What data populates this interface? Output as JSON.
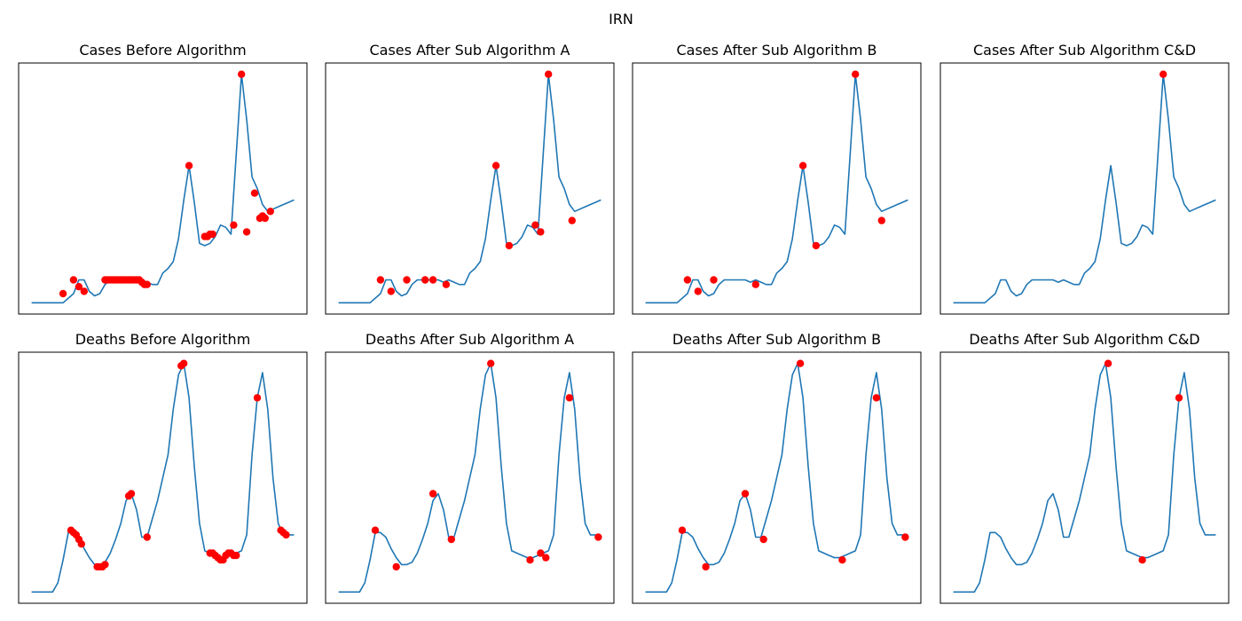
{
  "figure": {
    "title": "IRN"
  },
  "colors": {
    "line": "#1f77b4",
    "marker": "#ff0000",
    "axes": "#000000",
    "background": "#ffffff"
  },
  "layout": {
    "rows": 2,
    "cols": 4,
    "axis_ticks": "none",
    "grid": false
  },
  "chart_data": [
    {
      "type": "line",
      "title": "Cases Before Algorithm",
      "series": [
        {
          "x": [
            0,
            8,
            12,
            16,
            18,
            20,
            22,
            24,
            26,
            28,
            30,
            32,
            34,
            36,
            38,
            40,
            42,
            44,
            46,
            48,
            50,
            52,
            54,
            56,
            58,
            60,
            62,
            64,
            66,
            68,
            70,
            72,
            74,
            76,
            78,
            80,
            82,
            84,
            86,
            88,
            90,
            92,
            94,
            96,
            98,
            100
          ],
          "values": [
            0,
            0,
            0,
            4,
            10,
            10,
            5,
            3,
            4,
            8,
            10,
            10,
            10,
            10,
            10,
            9,
            10,
            9,
            8,
            8,
            13,
            15,
            18,
            28,
            45,
            60,
            44,
            26,
            25,
            26,
            29,
            34,
            33,
            30,
            65,
            100,
            80,
            55,
            50,
            43,
            40,
            41,
            42,
            43,
            44,
            45
          ]
        }
      ],
      "markers": [
        {
          "x": 12,
          "y": 4
        },
        {
          "x": 16,
          "y": 10
        },
        {
          "x": 18,
          "y": 7
        },
        {
          "x": 20,
          "y": 5
        },
        {
          "x": 28,
          "y": 10
        },
        {
          "x": 29,
          "y": 10
        },
        {
          "x": 30,
          "y": 10
        },
        {
          "x": 31,
          "y": 10
        },
        {
          "x": 32,
          "y": 10
        },
        {
          "x": 33,
          "y": 10
        },
        {
          "x": 34,
          "y": 10
        },
        {
          "x": 35,
          "y": 10
        },
        {
          "x": 36,
          "y": 10
        },
        {
          "x": 37,
          "y": 10
        },
        {
          "x": 38,
          "y": 10
        },
        {
          "x": 39,
          "y": 10
        },
        {
          "x": 40,
          "y": 10
        },
        {
          "x": 41,
          "y": 10
        },
        {
          "x": 42,
          "y": 9
        },
        {
          "x": 43,
          "y": 8
        },
        {
          "x": 44,
          "y": 8
        },
        {
          "x": 60,
          "y": 60
        },
        {
          "x": 66,
          "y": 29
        },
        {
          "x": 67,
          "y": 29
        },
        {
          "x": 68,
          "y": 30
        },
        {
          "x": 69,
          "y": 30
        },
        {
          "x": 77,
          "y": 34
        },
        {
          "x": 80,
          "y": 100
        },
        {
          "x": 85,
          "y": 48
        },
        {
          "x": 87,
          "y": 37
        },
        {
          "x": 89,
          "y": 37
        },
        {
          "x": 91,
          "y": 40
        },
        {
          "x": 82,
          "y": 31
        },
        {
          "x": 88,
          "y": 38
        }
      ]
    },
    {
      "type": "line",
      "title": "Cases After Sub Algorithm A",
      "series": [
        {
          "x": [
            0,
            8,
            12,
            16,
            18,
            20,
            22,
            24,
            26,
            28,
            30,
            32,
            34,
            36,
            38,
            40,
            42,
            44,
            46,
            48,
            50,
            52,
            54,
            56,
            58,
            60,
            62,
            64,
            66,
            68,
            70,
            72,
            74,
            76,
            78,
            80,
            82,
            84,
            86,
            88,
            90,
            92,
            94,
            96,
            98,
            100
          ],
          "values": [
            0,
            0,
            0,
            4,
            10,
            10,
            5,
            3,
            4,
            8,
            10,
            10,
            10,
            10,
            10,
            9,
            10,
            9,
            8,
            8,
            13,
            15,
            18,
            28,
            45,
            60,
            44,
            26,
            25,
            26,
            29,
            34,
            33,
            30,
            65,
            100,
            80,
            55,
            50,
            43,
            40,
            41,
            42,
            43,
            44,
            45
          ]
        }
      ],
      "markers": [
        {
          "x": 16,
          "y": 10
        },
        {
          "x": 20,
          "y": 5
        },
        {
          "x": 26,
          "y": 10
        },
        {
          "x": 33,
          "y": 10
        },
        {
          "x": 36,
          "y": 10
        },
        {
          "x": 41,
          "y": 8
        },
        {
          "x": 60,
          "y": 60
        },
        {
          "x": 65,
          "y": 25
        },
        {
          "x": 75,
          "y": 34
        },
        {
          "x": 77,
          "y": 31
        },
        {
          "x": 80,
          "y": 100
        },
        {
          "x": 89,
          "y": 36
        }
      ]
    },
    {
      "type": "line",
      "title": "Cases After Sub Algorithm B",
      "series": [
        {
          "x": [
            0,
            8,
            12,
            16,
            18,
            20,
            22,
            24,
            26,
            28,
            30,
            32,
            34,
            36,
            38,
            40,
            42,
            44,
            46,
            48,
            50,
            52,
            54,
            56,
            58,
            60,
            62,
            64,
            66,
            68,
            70,
            72,
            74,
            76,
            78,
            80,
            82,
            84,
            86,
            88,
            90,
            92,
            94,
            96,
            98,
            100
          ],
          "values": [
            0,
            0,
            0,
            4,
            10,
            10,
            5,
            3,
            4,
            8,
            10,
            10,
            10,
            10,
            10,
            9,
            10,
            9,
            8,
            8,
            13,
            15,
            18,
            28,
            45,
            60,
            44,
            26,
            25,
            26,
            29,
            34,
            33,
            30,
            65,
            100,
            80,
            55,
            50,
            43,
            40,
            41,
            42,
            43,
            44,
            45
          ]
        }
      ],
      "markers": [
        {
          "x": 16,
          "y": 10
        },
        {
          "x": 20,
          "y": 5
        },
        {
          "x": 26,
          "y": 10
        },
        {
          "x": 42,
          "y": 8
        },
        {
          "x": 60,
          "y": 60
        },
        {
          "x": 65,
          "y": 25
        },
        {
          "x": 80,
          "y": 100
        },
        {
          "x": 90,
          "y": 36
        }
      ]
    },
    {
      "type": "line",
      "title": "Cases After Sub Algorithm C&D",
      "series": [
        {
          "x": [
            0,
            8,
            12,
            16,
            18,
            20,
            22,
            24,
            26,
            28,
            30,
            32,
            34,
            36,
            38,
            40,
            42,
            44,
            46,
            48,
            50,
            52,
            54,
            56,
            58,
            60,
            62,
            64,
            66,
            68,
            70,
            72,
            74,
            76,
            78,
            80,
            82,
            84,
            86,
            88,
            90,
            92,
            94,
            96,
            98,
            100
          ],
          "values": [
            0,
            0,
            0,
            4,
            10,
            10,
            5,
            3,
            4,
            8,
            10,
            10,
            10,
            10,
            10,
            9,
            10,
            9,
            8,
            8,
            13,
            15,
            18,
            28,
            45,
            60,
            44,
            26,
            25,
            26,
            29,
            34,
            33,
            30,
            65,
            100,
            80,
            55,
            50,
            43,
            40,
            41,
            42,
            43,
            44,
            45
          ]
        }
      ],
      "markers": [
        {
          "x": 80,
          "y": 100
        }
      ]
    },
    {
      "type": "line",
      "title": "Deaths Before Algorithm",
      "series": [
        {
          "x": [
            0,
            8,
            10,
            12,
            14,
            16,
            18,
            20,
            22,
            24,
            26,
            28,
            30,
            32,
            34,
            36,
            38,
            40,
            42,
            44,
            46,
            48,
            50,
            52,
            54,
            56,
            58,
            60,
            62,
            64,
            66,
            68,
            70,
            72,
            74,
            76,
            78,
            80,
            82,
            84,
            86,
            88,
            90,
            92,
            94,
            96,
            100
          ],
          "values": [
            0,
            0,
            4,
            14,
            26,
            26,
            24,
            19,
            15,
            12,
            12,
            13,
            17,
            23,
            30,
            40,
            43,
            36,
            24,
            24,
            32,
            40,
            50,
            60,
            80,
            95,
            100,
            85,
            55,
            30,
            18,
            17,
            16,
            15,
            15,
            16,
            17,
            18,
            25,
            60,
            85,
            96,
            80,
            50,
            30,
            25,
            25
          ]
        }
      ],
      "markers": [
        {
          "x": 15,
          "y": 27
        },
        {
          "x": 16,
          "y": 26
        },
        {
          "x": 17,
          "y": 25
        },
        {
          "x": 18,
          "y": 23
        },
        {
          "x": 19,
          "y": 21
        },
        {
          "x": 25,
          "y": 11
        },
        {
          "x": 26,
          "y": 11
        },
        {
          "x": 27,
          "y": 11
        },
        {
          "x": 28,
          "y": 12
        },
        {
          "x": 38,
          "y": 43
        },
        {
          "x": 37,
          "y": 42
        },
        {
          "x": 44,
          "y": 24
        },
        {
          "x": 57,
          "y": 99
        },
        {
          "x": 58,
          "y": 100
        },
        {
          "x": 68,
          "y": 17
        },
        {
          "x": 69,
          "y": 17
        },
        {
          "x": 70,
          "y": 16
        },
        {
          "x": 71,
          "y": 15
        },
        {
          "x": 72,
          "y": 14
        },
        {
          "x": 73,
          "y": 14
        },
        {
          "x": 74,
          "y": 16
        },
        {
          "x": 75,
          "y": 17
        },
        {
          "x": 76,
          "y": 17
        },
        {
          "x": 77,
          "y": 16
        },
        {
          "x": 78,
          "y": 16
        },
        {
          "x": 86,
          "y": 85
        },
        {
          "x": 95,
          "y": 27
        },
        {
          "x": 96,
          "y": 26
        },
        {
          "x": 97,
          "y": 25
        }
      ]
    },
    {
      "type": "line",
      "title": "Deaths After Sub Algorithm A",
      "series": [
        {
          "x": [
            0,
            8,
            10,
            12,
            14,
            16,
            18,
            20,
            22,
            24,
            26,
            28,
            30,
            32,
            34,
            36,
            38,
            40,
            42,
            44,
            46,
            48,
            50,
            52,
            54,
            56,
            58,
            60,
            62,
            64,
            66,
            68,
            70,
            72,
            74,
            76,
            78,
            80,
            82,
            84,
            86,
            88,
            90,
            92,
            94,
            96,
            100
          ],
          "values": [
            0,
            0,
            4,
            14,
            26,
            26,
            24,
            19,
            15,
            12,
            12,
            13,
            17,
            23,
            30,
            40,
            43,
            36,
            24,
            24,
            32,
            40,
            50,
            60,
            80,
            95,
            100,
            85,
            55,
            30,
            18,
            17,
            16,
            15,
            15,
            16,
            17,
            18,
            25,
            60,
            85,
            96,
            80,
            50,
            30,
            25,
            25
          ]
        }
      ],
      "markers": [
        {
          "x": 14,
          "y": 27
        },
        {
          "x": 22,
          "y": 11
        },
        {
          "x": 36,
          "y": 43
        },
        {
          "x": 43,
          "y": 23
        },
        {
          "x": 58,
          "y": 100
        },
        {
          "x": 73,
          "y": 14
        },
        {
          "x": 77,
          "y": 17
        },
        {
          "x": 79,
          "y": 15
        },
        {
          "x": 88,
          "y": 85
        },
        {
          "x": 99,
          "y": 24
        }
      ]
    },
    {
      "type": "line",
      "title": "Deaths After Sub Algorithm B",
      "series": [
        {
          "x": [
            0,
            8,
            10,
            12,
            14,
            16,
            18,
            20,
            22,
            24,
            26,
            28,
            30,
            32,
            34,
            36,
            38,
            40,
            42,
            44,
            46,
            48,
            50,
            52,
            54,
            56,
            58,
            60,
            62,
            64,
            66,
            68,
            70,
            72,
            74,
            76,
            78,
            80,
            82,
            84,
            86,
            88,
            90,
            92,
            94,
            96,
            100
          ],
          "values": [
            0,
            0,
            4,
            14,
            26,
            26,
            24,
            19,
            15,
            12,
            12,
            13,
            17,
            23,
            30,
            40,
            43,
            36,
            24,
            24,
            32,
            40,
            50,
            60,
            80,
            95,
            100,
            85,
            55,
            30,
            18,
            17,
            16,
            15,
            15,
            16,
            17,
            18,
            25,
            60,
            85,
            96,
            80,
            50,
            30,
            25,
            25
          ]
        }
      ],
      "markers": [
        {
          "x": 14,
          "y": 27
        },
        {
          "x": 23,
          "y": 11
        },
        {
          "x": 38,
          "y": 43
        },
        {
          "x": 45,
          "y": 23
        },
        {
          "x": 59,
          "y": 100
        },
        {
          "x": 75,
          "y": 14
        },
        {
          "x": 88,
          "y": 85
        },
        {
          "x": 99,
          "y": 24
        }
      ]
    },
    {
      "type": "line",
      "title": "Deaths After Sub Algorithm C&D",
      "series": [
        {
          "x": [
            0,
            8,
            10,
            12,
            14,
            16,
            18,
            20,
            22,
            24,
            26,
            28,
            30,
            32,
            34,
            36,
            38,
            40,
            42,
            44,
            46,
            48,
            50,
            52,
            54,
            56,
            58,
            60,
            62,
            64,
            66,
            68,
            70,
            72,
            74,
            76,
            78,
            80,
            82,
            84,
            86,
            88,
            90,
            92,
            94,
            96,
            100
          ],
          "values": [
            0,
            0,
            4,
            14,
            26,
            26,
            24,
            19,
            15,
            12,
            12,
            13,
            17,
            23,
            30,
            40,
            43,
            36,
            24,
            24,
            32,
            40,
            50,
            60,
            80,
            95,
            100,
            85,
            55,
            30,
            18,
            17,
            16,
            15,
            15,
            16,
            17,
            18,
            25,
            60,
            85,
            96,
            80,
            50,
            30,
            25,
            25
          ]
        }
      ],
      "markers": [
        {
          "x": 59,
          "y": 100
        },
        {
          "x": 72,
          "y": 14
        },
        {
          "x": 86,
          "y": 85
        }
      ]
    }
  ]
}
